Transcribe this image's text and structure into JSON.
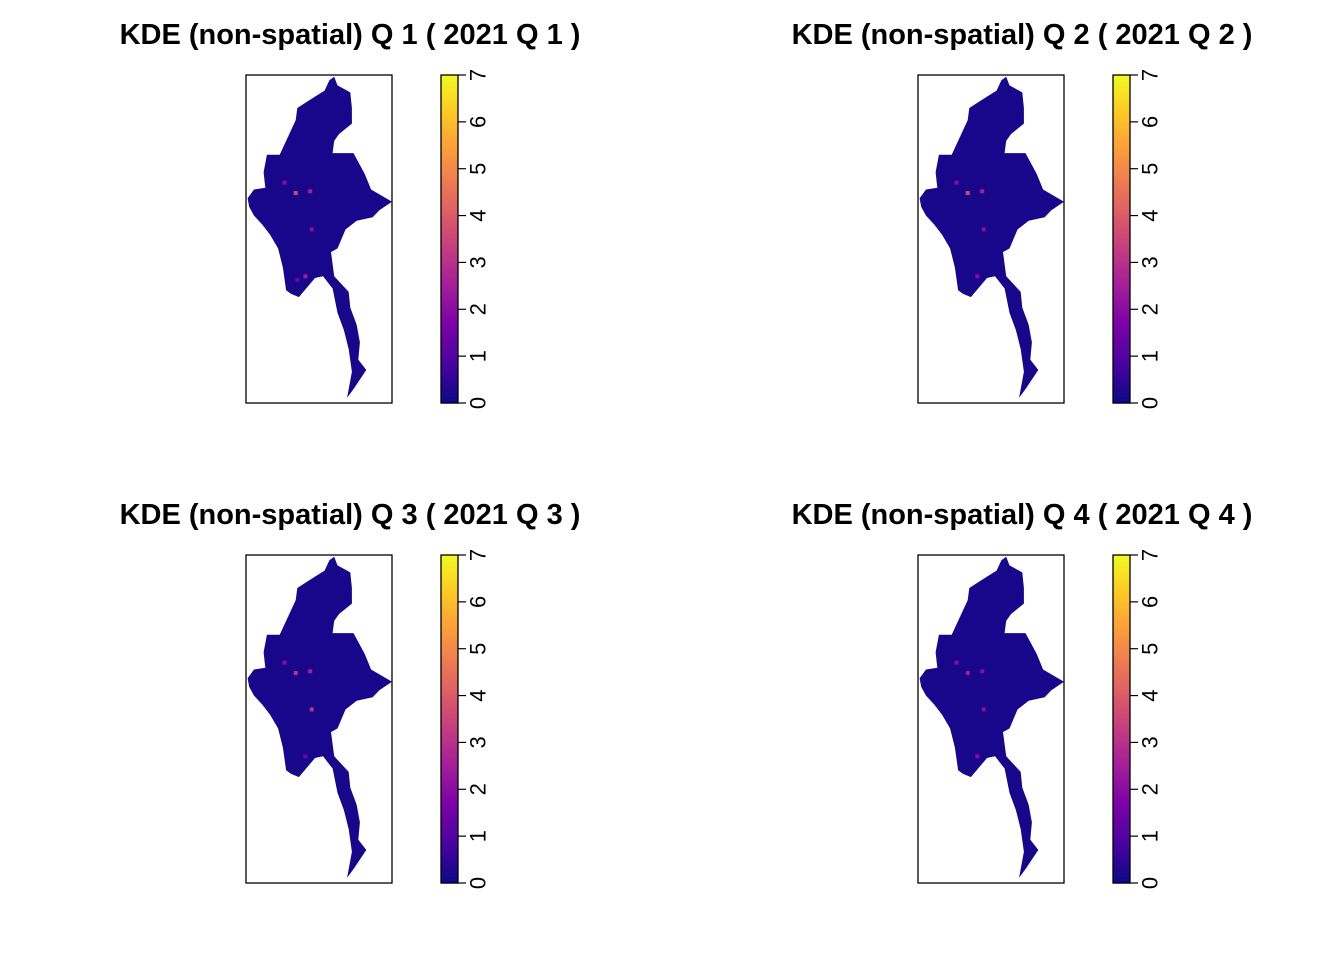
{
  "chart_data": [
    {
      "type": "heatmap",
      "title": "KDE (non-spatial) Q 1 ( 2021 Q 1 )",
      "legend": {
        "ticks": [
          "0",
          "1",
          "2",
          "3",
          "4",
          "5",
          "6",
          "7"
        ],
        "zlim": [
          0,
          7
        ],
        "placement": "right"
      },
      "colors": [
        "#0D0887",
        "#4B03A1",
        "#7D03A8",
        "#A82296",
        "#CB4679",
        "#E56B5D",
        "#F89441",
        "#FDC328",
        "#F0F921"
      ],
      "hotspots": [
        {
          "lon": 95.2,
          "lat": 21.8,
          "value": 3.5
        },
        {
          "lon": 96.1,
          "lat": 21.9,
          "value": 2.5
        },
        {
          "lon": 94.5,
          "lat": 22.4,
          "value": 2.0
        },
        {
          "lon": 96.2,
          "lat": 19.7,
          "value": 2.0
        },
        {
          "lon": 95.8,
          "lat": 17.0,
          "value": 2.5
        },
        {
          "lon": 95.3,
          "lat": 16.8,
          "value": 1.5
        }
      ]
    },
    {
      "type": "heatmap",
      "title": "KDE (non-spatial) Q 2 ( 2021 Q 2 )",
      "legend": {
        "ticks": [
          "0",
          "1",
          "2",
          "3",
          "4",
          "5",
          "6",
          "7"
        ],
        "zlim": [
          0,
          7
        ],
        "placement": "right"
      },
      "colors": [
        "#0D0887",
        "#4B03A1",
        "#7D03A8",
        "#A82296",
        "#CB4679",
        "#E56B5D",
        "#F89441",
        "#FDC328",
        "#F0F921"
      ],
      "hotspots": [
        {
          "lon": 95.2,
          "lat": 21.8,
          "value": 3.5
        },
        {
          "lon": 96.1,
          "lat": 21.9,
          "value": 2.5
        },
        {
          "lon": 94.5,
          "lat": 22.4,
          "value": 2.0
        },
        {
          "lon": 96.2,
          "lat": 19.7,
          "value": 2.0
        },
        {
          "lon": 95.8,
          "lat": 17.0,
          "value": 2.0
        }
      ]
    },
    {
      "type": "heatmap",
      "title": "KDE (non-spatial) Q 3 ( 2021 Q 3 )",
      "legend": {
        "ticks": [
          "0",
          "1",
          "2",
          "3",
          "4",
          "5",
          "6",
          "7"
        ],
        "zlim": [
          0,
          7
        ],
        "placement": "right"
      },
      "colors": [
        "#0D0887",
        "#4B03A1",
        "#7D03A8",
        "#A82296",
        "#CB4679",
        "#E56B5D",
        "#F89441",
        "#FDC328",
        "#F0F921"
      ],
      "hotspots": [
        {
          "lon": 95.2,
          "lat": 21.8,
          "value": 3.0
        },
        {
          "lon": 96.1,
          "lat": 21.9,
          "value": 2.5
        },
        {
          "lon": 94.5,
          "lat": 22.4,
          "value": 2.0
        },
        {
          "lon": 96.2,
          "lat": 19.7,
          "value": 3.0
        },
        {
          "lon": 95.8,
          "lat": 17.0,
          "value": 1.5
        }
      ]
    },
    {
      "type": "heatmap",
      "title": "KDE (non-spatial) Q 4 ( 2021 Q 4 )",
      "legend": {
        "ticks": [
          "0",
          "1",
          "2",
          "3",
          "4",
          "5",
          "6",
          "7"
        ],
        "zlim": [
          0,
          7
        ],
        "placement": "right"
      },
      "colors": [
        "#0D0887",
        "#4B03A1",
        "#7D03A8",
        "#A82296",
        "#CB4679",
        "#E56B5D",
        "#F89441",
        "#FDC328",
        "#F0F921"
      ],
      "hotspots": [
        {
          "lon": 95.2,
          "lat": 21.8,
          "value": 2.5
        },
        {
          "lon": 96.1,
          "lat": 21.9,
          "value": 2.0
        },
        {
          "lon": 94.5,
          "lat": 22.4,
          "value": 2.0
        },
        {
          "lon": 96.2,
          "lat": 19.7,
          "value": 2.0
        },
        {
          "lon": 95.8,
          "lat": 17.0,
          "value": 2.0
        }
      ]
    }
  ]
}
